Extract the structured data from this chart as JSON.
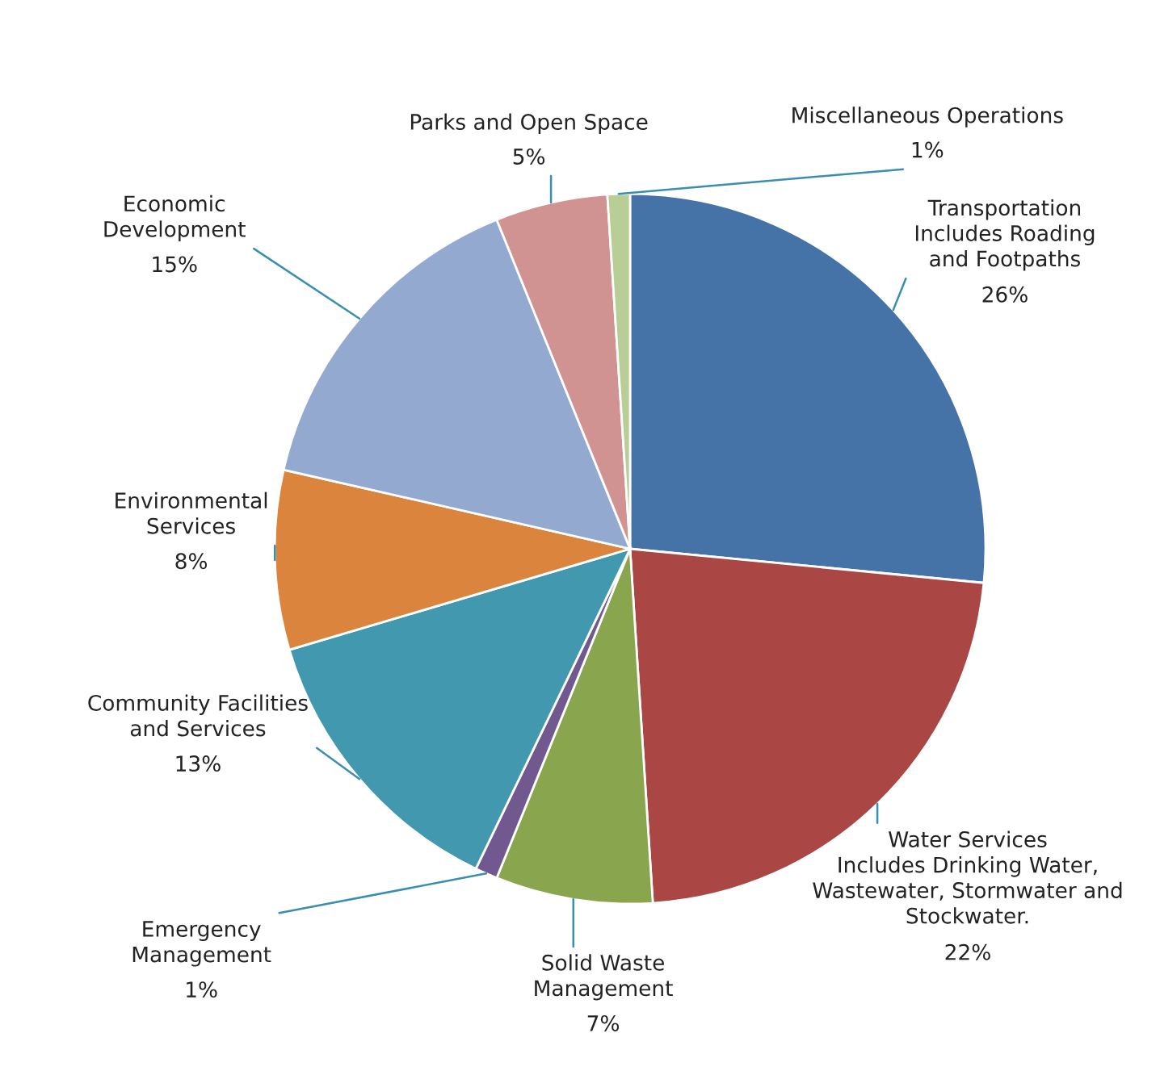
{
  "chart_data": {
    "type": "pie",
    "categories": [
      "Transportation\nIncludes Roading\nand Footpaths",
      "Water Services\nIncludes Drinking Water,\nWastewater, Stormwater and\nStockwater.",
      "Solid Waste\nManagement",
      "Emergency\nManagement",
      "Community Facilities\nand Services",
      "Environmental\nServices",
      "Economic\nDevelopment",
      "Parks and Open Space",
      "Miscellaneous Operations"
    ],
    "values": [
      26,
      22,
      7,
      1,
      13,
      8,
      15,
      5,
      1
    ],
    "colors": [
      "#4572a7",
      "#aa4643",
      "#89a54e",
      "#71588f",
      "#4198af",
      "#db843d",
      "#93a9cf",
      "#d19392",
      "#b9cd96"
    ],
    "value_labels": [
      "26%",
      "22%",
      "7%",
      "1%",
      "13%",
      "8%",
      "15%",
      "5%",
      "1%"
    ]
  }
}
